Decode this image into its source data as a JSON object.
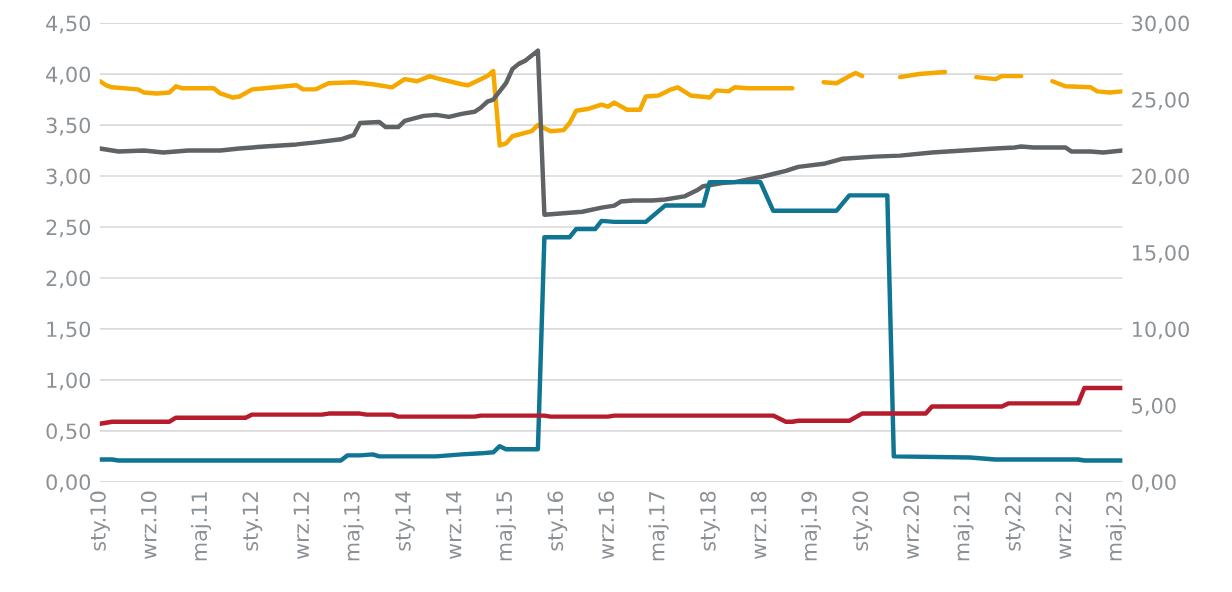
{
  "chart_data": {
    "type": "line",
    "xlim": [
      "2010-01",
      "2023-06"
    ],
    "xticks": [
      {
        "value": "2010-01",
        "label": "sty.10"
      },
      {
        "value": "2010-09",
        "label": "wrz.10"
      },
      {
        "value": "2011-05",
        "label": "maj.11"
      },
      {
        "value": "2012-01",
        "label": "sty.12"
      },
      {
        "value": "2012-09",
        "label": "wrz.12"
      },
      {
        "value": "2013-05",
        "label": "maj.13"
      },
      {
        "value": "2014-01",
        "label": "sty.14"
      },
      {
        "value": "2014-09",
        "label": "wrz.14"
      },
      {
        "value": "2015-05",
        "label": "maj.15"
      },
      {
        "value": "2016-01",
        "label": "sty.16"
      },
      {
        "value": "2016-09",
        "label": "wrz.16"
      },
      {
        "value": "2017-05",
        "label": "maj.17"
      },
      {
        "value": "2018-01",
        "label": "sty.18"
      },
      {
        "value": "2018-09",
        "label": "wrz.18"
      },
      {
        "value": "2019-05",
        "label": "maj.19"
      },
      {
        "value": "2020-01",
        "label": "sty.20"
      },
      {
        "value": "2020-09",
        "label": "wrz.20"
      },
      {
        "value": "2021-05",
        "label": "maj.21"
      },
      {
        "value": "2022-01",
        "label": "sty.22"
      },
      {
        "value": "2022-09",
        "label": "wrz.22"
      },
      {
        "value": "2023-05",
        "label": "maj.23"
      }
    ],
    "ylim": [
      0,
      4.5
    ],
    "yticks": [
      {
        "value": 0,
        "label": "0,00"
      },
      {
        "value": 0.5,
        "label": "0,50"
      },
      {
        "value": 1,
        "label": "1,00"
      },
      {
        "value": 1.5,
        "label": "1,50"
      },
      {
        "value": 2,
        "label": "2,00"
      },
      {
        "value": 2.5,
        "label": "2,50"
      },
      {
        "value": 3,
        "label": "3,00"
      },
      {
        "value": 3.5,
        "label": "3,50"
      },
      {
        "value": 4,
        "label": "4,00"
      },
      {
        "value": 4.5,
        "label": "4,50"
      }
    ],
    "y2lim": [
      0,
      30
    ],
    "y2ticks": [
      {
        "value": 0,
        "label": "0,00"
      },
      {
        "value": 5,
        "label": "5,00"
      },
      {
        "value": 10,
        "label": "10,00"
      },
      {
        "value": 15,
        "label": "15,00"
      },
      {
        "value": 20,
        "label": "20,00"
      },
      {
        "value": 25,
        "label": "25,00"
      },
      {
        "value": 30,
        "label": "30,00"
      }
    ],
    "grid": "y",
    "legend": false,
    "line_style": "solid",
    "series": [
      {
        "color": "#f5a800",
        "x": [
          "2010-01",
          "2010-02",
          "2010-03",
          "2010-07",
          "2010-08",
          "2010-10",
          "2010-12",
          "2011-01",
          "2011-02",
          "2011-07",
          "2011-08",
          "2011-10",
          "2011-11",
          "2012-01",
          "2012-03",
          "2012-08",
          "2012-09",
          "2012-11",
          "2013-01",
          "2013-05",
          "2013-08",
          "2013-11",
          "2014-01",
          "2014-03",
          "2014-05",
          "2014-06",
          "2014-10",
          "2014-11",
          "2015-02",
          "2015-03",
          "2015-04",
          "2015-05",
          "2015-06",
          "2015-09",
          "2015-10",
          "2015-12",
          "2016-02",
          "2016-03",
          "2016-04",
          "2016-06",
          "2016-08",
          "2016-09",
          "2016-10",
          "2016-12",
          "2017-02",
          "2017-03",
          "2017-05",
          "2017-07",
          "2017-08",
          "2017-10",
          "2018-01",
          "2018-02",
          "2018-04",
          "2018-05",
          "2018-07",
          "2019-02",
          "2019-04",
          "2019-07",
          "2019-09",
          "2019-11",
          "2019-12",
          "2020-01",
          "2020-04",
          "2020-07",
          "2020-10",
          "2021-02",
          "2021-04",
          "2021-07",
          "2021-10",
          "2021-11",
          "2022-02",
          "2022-05",
          "2022-07",
          "2022-09",
          "2023-01",
          "2023-02",
          "2023-04",
          "2023-06"
        ],
        "values": [
          3.93,
          3.89,
          3.87,
          3.85,
          3.82,
          3.81,
          3.82,
          3.88,
          3.86,
          3.86,
          3.81,
          3.77,
          3.78,
          3.85,
          3.86,
          3.89,
          3.85,
          3.85,
          3.91,
          3.92,
          3.9,
          3.87,
          3.95,
          3.93,
          3.98,
          3.96,
          3.9,
          3.89,
          3.98,
          4.03,
          3.3,
          3.32,
          3.39,
          3.44,
          3.5,
          3.44,
          3.45,
          3.52,
          3.64,
          3.66,
          3.7,
          3.68,
          3.72,
          3.65,
          3.65,
          3.78,
          3.79,
          3.85,
          3.87,
          3.79,
          3.77,
          3.84,
          3.83,
          3.87,
          3.86,
          3.86,
          null,
          3.92,
          3.91,
          3.98,
          4.01,
          3.98,
          null,
          3.97,
          4.0,
          4.02,
          null,
          3.97,
          3.95,
          3.98,
          3.98,
          null,
          3.93,
          3.88,
          3.87,
          3.83,
          3.82,
          3.83
        ]
      },
      {
        "color": "#5f6366",
        "x": [
          "2010-01",
          "2010-04",
          "2010-08",
          "2010-11",
          "2011-03",
          "2011-08",
          "2011-11",
          "2012-03",
          "2012-08",
          "2012-11",
          "2013-03",
          "2013-05",
          "2013-06",
          "2013-09",
          "2013-10",
          "2013-12",
          "2014-01",
          "2014-04",
          "2014-06",
          "2014-08",
          "2014-10",
          "2014-12",
          "2015-01",
          "2015-02",
          "2015-03",
          "2015-05",
          "2015-06",
          "2015-07",
          "2015-08",
          "2015-10",
          "2015-11",
          "2016-01",
          "2016-05",
          "2016-08",
          "2016-10",
          "2016-11",
          "2017-01",
          "2017-04",
          "2017-06",
          "2017-09",
          "2017-11",
          "2017-12",
          "2018-03",
          "2018-05",
          "2018-09",
          "2018-11",
          "2019-01",
          "2019-03",
          "2019-07",
          "2019-10",
          "2020-03",
          "2020-07",
          "2020-12",
          "2021-05",
          "2021-10",
          "2022-01",
          "2022-02",
          "2022-04",
          "2022-09",
          "2022-10",
          "2023-01",
          "2023-03",
          "2023-06"
        ],
        "values": [
          3.27,
          3.24,
          3.25,
          3.23,
          3.25,
          3.25,
          3.27,
          3.29,
          3.31,
          3.33,
          3.36,
          3.4,
          3.52,
          3.53,
          3.48,
          3.48,
          3.54,
          3.59,
          3.6,
          3.58,
          3.61,
          3.63,
          3.67,
          3.73,
          3.75,
          3.91,
          4.05,
          4.1,
          4.13,
          4.23,
          2.62,
          2.63,
          2.65,
          2.69,
          2.71,
          2.75,
          2.76,
          2.76,
          2.77,
          2.8,
          2.86,
          2.9,
          2.93,
          2.94,
          2.99,
          3.02,
          3.05,
          3.09,
          3.12,
          3.17,
          3.19,
          3.2,
          3.23,
          3.25,
          3.27,
          3.28,
          3.29,
          3.28,
          3.28,
          3.24,
          3.24,
          3.23,
          3.25
        ]
      },
      {
        "color": "#0f7593",
        "x": [
          "2010-01",
          "2010-03",
          "2010-04",
          "2013-03",
          "2013-04",
          "2013-06",
          "2013-08",
          "2013-09",
          "2014-06",
          "2014-10",
          "2015-01",
          "2015-03",
          "2015-04",
          "2015-05",
          "2015-10",
          "2015-11",
          "2016-03",
          "2016-04",
          "2016-07",
          "2016-08",
          "2016-10",
          "2017-03",
          "2017-06",
          "2017-12",
          "2018-01",
          "2018-09",
          "2018-11",
          "2019-09",
          "2019-11",
          "2020-05",
          "2020-06",
          "2021-06",
          "2021-10",
          "2022-11",
          "2022-12",
          "2023-06"
        ],
        "values": [
          0.22,
          0.22,
          0.21,
          0.21,
          0.26,
          0.26,
          0.27,
          0.25,
          0.25,
          0.27,
          0.28,
          0.29,
          0.35,
          0.32,
          0.32,
          2.4,
          2.4,
          2.48,
          2.48,
          2.56,
          2.55,
          2.55,
          2.71,
          2.71,
          2.94,
          2.94,
          2.66,
          2.66,
          2.81,
          2.81,
          0.25,
          0.24,
          0.22,
          0.22,
          0.21,
          0.21
        ]
      },
      {
        "color": "#b71c2c",
        "x": [
          "2010-01",
          "2010-03",
          "2010-12",
          "2011-01",
          "2011-12",
          "2012-01",
          "2012-12",
          "2013-01",
          "2013-06",
          "2013-07",
          "2013-11",
          "2013-12",
          "2014-12",
          "2015-01",
          "2015-11",
          "2015-12",
          "2016-09",
          "2016-10",
          "2018-11",
          "2019-01",
          "2019-02",
          "2019-03",
          "2019-11",
          "2020-01",
          "2020-11",
          "2020-12",
          "2021-11",
          "2021-12",
          "2022-11",
          "2022-12",
          "2023-06"
        ],
        "values": [
          0.57,
          0.59,
          0.59,
          0.63,
          0.63,
          0.66,
          0.66,
          0.67,
          0.67,
          0.66,
          0.66,
          0.64,
          0.64,
          0.65,
          0.65,
          0.64,
          0.64,
          0.65,
          0.65,
          0.59,
          0.59,
          0.6,
          0.6,
          0.67,
          0.67,
          0.74,
          0.74,
          0.77,
          0.77,
          0.92,
          0.92
        ]
      }
    ]
  }
}
